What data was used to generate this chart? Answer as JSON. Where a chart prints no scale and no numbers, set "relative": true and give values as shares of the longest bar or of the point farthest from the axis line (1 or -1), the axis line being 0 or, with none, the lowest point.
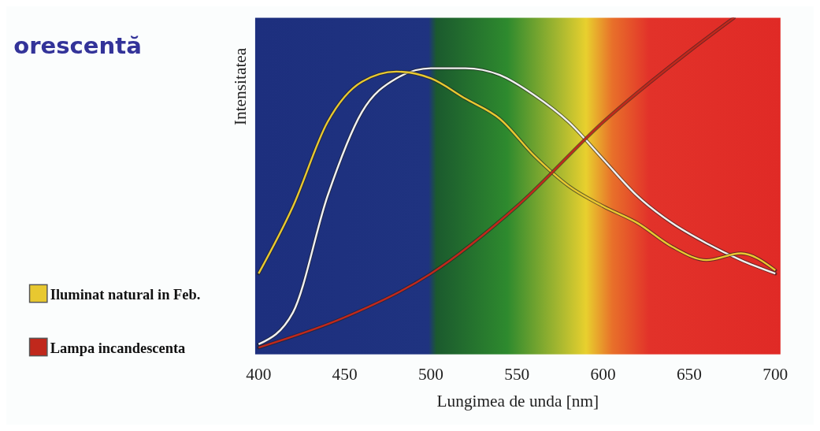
{
  "chart_data": {
    "type": "line",
    "title": "orescentă",
    "xlabel": "Lungimea de unda [nm]",
    "ylabel": "Intensitatea",
    "relative": true,
    "legend": "left",
    "xlim": [
      398,
      703
    ],
    "xticks": [
      400,
      450,
      500,
      550,
      600,
      650,
      700
    ],
    "x": [
      400,
      420,
      440,
      460,
      480,
      500,
      520,
      540,
      560,
      580,
      600,
      620,
      640,
      660,
      680,
      700
    ],
    "series": [
      {
        "color": "#f0f0f0",
        "values": [
          0.03,
          0.125,
          0.47,
          0.72,
          0.82,
          0.85,
          0.85,
          0.83,
          0.77,
          0.69,
          0.58,
          0.47,
          0.39,
          0.33,
          0.28,
          0.24
        ]
      },
      {
        "name": "Iluminat natural in Feb.",
        "color": "#e8c830",
        "values": [
          0.24,
          0.44,
          0.69,
          0.81,
          0.84,
          0.82,
          0.76,
          0.7,
          0.59,
          0.5,
          0.44,
          0.39,
          0.32,
          0.28,
          0.3,
          0.25
        ]
      },
      {
        "name": "Lampa incandescenta",
        "color": "#c0281c",
        "x": [
          400,
          450,
          500,
          550,
          600,
          650,
          676
        ],
        "values": [
          0.02,
          0.11,
          0.24,
          0.44,
          0.69,
          0.9,
          1
        ]
      }
    ]
  }
}
